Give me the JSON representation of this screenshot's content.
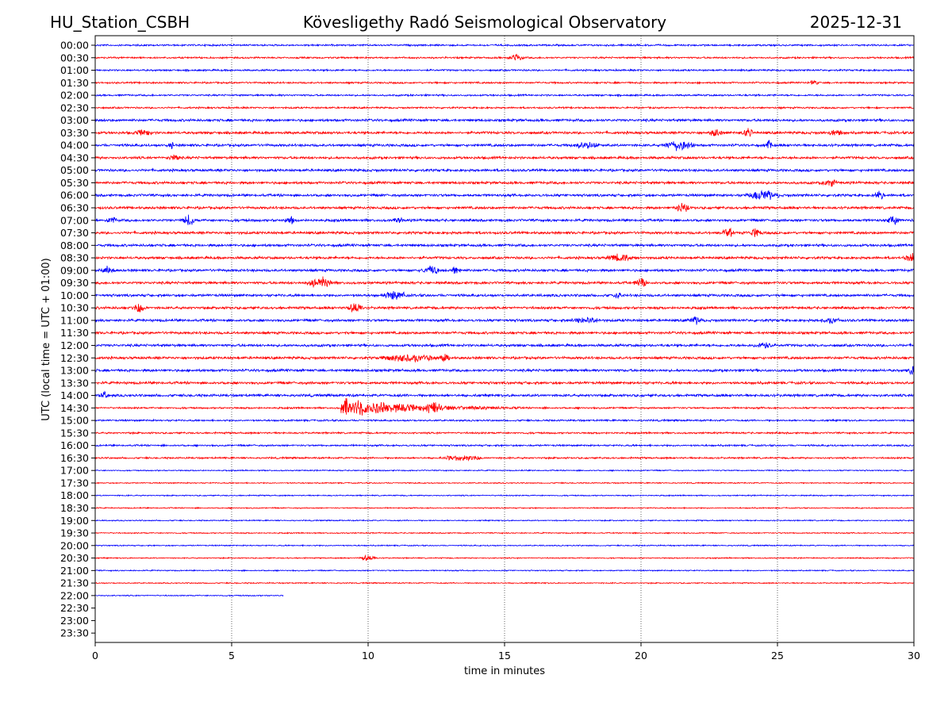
{
  "chart_data": {
    "type": "line",
    "title_left": "HU_Station_CSBH",
    "title_center": "Kövesligethy Radó Seismological Observatory",
    "title_right": "2025-12-31",
    "xlabel": "time in minutes",
    "ylabel": "UTC (local time = UTC + 01:00)",
    "xlim": [
      0,
      30
    ],
    "x_ticks": [
      "0",
      "5",
      "10",
      "15",
      "20",
      "25",
      "30"
    ],
    "grid": "vertical dotted at every 5 minutes",
    "row_labels": [
      "00:00",
      "00:30",
      "01:00",
      "01:30",
      "02:00",
      "02:30",
      "03:00",
      "03:30",
      "04:00",
      "04:30",
      "05:00",
      "05:30",
      "06:00",
      "06:30",
      "07:00",
      "07:30",
      "08:00",
      "08:30",
      "09:00",
      "09:30",
      "10:00",
      "10:30",
      "11:00",
      "11:30",
      "12:00",
      "12:30",
      "13:00",
      "13:30",
      "14:00",
      "14:30",
      "15:00",
      "15:30",
      "16:00",
      "16:30",
      "17:00",
      "17:30",
      "18:00",
      "18:30",
      "19:00",
      "19:30",
      "20:00",
      "20:30",
      "21:00",
      "21:30",
      "22:00",
      "22:30",
      "23:00",
      "23:30"
    ],
    "series_colors": {
      "hour": "#0000ff",
      "half_hour": "#ff0000"
    },
    "data_end": {
      "row": "22:00",
      "minute": 6.9
    },
    "events": [
      {
        "row": "00:30",
        "minute": 15.2,
        "amp": 4,
        "dur": 0.5
      },
      {
        "row": "01:30",
        "minute": 26.2,
        "amp": 3,
        "dur": 0.3
      },
      {
        "row": "03:30",
        "minute": 1.5,
        "amp": 3,
        "dur": 0.6
      },
      {
        "row": "03:30",
        "minute": 22.5,
        "amp": 4,
        "dur": 0.5
      },
      {
        "row": "03:30",
        "minute": 23.7,
        "amp": 5,
        "dur": 0.4
      },
      {
        "row": "03:30",
        "minute": 26.8,
        "amp": 3,
        "dur": 0.6
      },
      {
        "row": "04:00",
        "minute": 2.7,
        "amp": 4,
        "dur": 0.2
      },
      {
        "row": "04:00",
        "minute": 17.5,
        "amp": 3,
        "dur": 1.0
      },
      {
        "row": "04:00",
        "minute": 20.8,
        "amp": 5,
        "dur": 1.2
      },
      {
        "row": "04:00",
        "minute": 24.6,
        "amp": 5,
        "dur": 0.2
      },
      {
        "row": "04:30",
        "minute": 2.7,
        "amp": 3,
        "dur": 0.4
      },
      {
        "row": "05:30",
        "minute": 26.7,
        "amp": 4,
        "dur": 0.5
      },
      {
        "row": "06:00",
        "minute": 23.9,
        "amp": 5,
        "dur": 1.2
      },
      {
        "row": "06:00",
        "minute": 28.6,
        "amp": 5,
        "dur": 0.3
      },
      {
        "row": "06:30",
        "minute": 21.3,
        "amp": 5,
        "dur": 0.5
      },
      {
        "row": "07:00",
        "minute": 0.4,
        "amp": 4,
        "dur": 0.4
      },
      {
        "row": "07:00",
        "minute": 3.2,
        "amp": 6,
        "dur": 0.5
      },
      {
        "row": "07:00",
        "minute": 7.0,
        "amp": 5,
        "dur": 0.3
      },
      {
        "row": "07:00",
        "minute": 11.0,
        "amp": 5,
        "dur": 0.3
      },
      {
        "row": "07:00",
        "minute": 29.0,
        "amp": 4,
        "dur": 0.5
      },
      {
        "row": "07:30",
        "minute": 23.0,
        "amp": 5,
        "dur": 0.4
      },
      {
        "row": "07:30",
        "minute": 24.0,
        "amp": 5,
        "dur": 0.4
      },
      {
        "row": "08:30",
        "minute": 18.8,
        "amp": 4,
        "dur": 1.0
      },
      {
        "row": "08:30",
        "minute": 29.7,
        "amp": 5,
        "dur": 0.6
      },
      {
        "row": "09:00",
        "minute": 0.2,
        "amp": 4,
        "dur": 0.5
      },
      {
        "row": "09:00",
        "minute": 12.0,
        "amp": 5,
        "dur": 0.6
      },
      {
        "row": "09:00",
        "minute": 13.0,
        "amp": 4,
        "dur": 0.4
      },
      {
        "row": "09:30",
        "minute": 7.8,
        "amp": 6,
        "dur": 0.9
      },
      {
        "row": "09:30",
        "minute": 19.8,
        "amp": 6,
        "dur": 0.4
      },
      {
        "row": "10:00",
        "minute": 10.6,
        "amp": 5,
        "dur": 0.8
      },
      {
        "row": "10:00",
        "minute": 19.0,
        "amp": 4,
        "dur": 0.3
      },
      {
        "row": "10:30",
        "minute": 1.4,
        "amp": 5,
        "dur": 0.5
      },
      {
        "row": "10:30",
        "minute": 9.3,
        "amp": 6,
        "dur": 0.5
      },
      {
        "row": "11:00",
        "minute": 17.5,
        "amp": 3,
        "dur": 1.0
      },
      {
        "row": "11:00",
        "minute": 21.8,
        "amp": 4,
        "dur": 0.5
      },
      {
        "row": "11:00",
        "minute": 26.7,
        "amp": 3,
        "dur": 0.6
      },
      {
        "row": "12:00",
        "minute": 24.2,
        "amp": 4,
        "dur": 0.6
      },
      {
        "row": "12:30",
        "minute": 10.5,
        "amp": 4,
        "dur": 2.0
      },
      {
        "row": "12:30",
        "minute": 12.6,
        "amp": 4,
        "dur": 0.4
      },
      {
        "row": "13:00",
        "minute": 29.8,
        "amp": 5,
        "dur": 0.3
      },
      {
        "row": "14:00",
        "minute": 0.2,
        "amp": 4,
        "dur": 0.3
      },
      {
        "row": "14:30",
        "minute": 9.1,
        "amp": 14,
        "dur": 6.5
      },
      {
        "row": "16:30",
        "minute": 12.7,
        "amp": 3,
        "dur": 1.5
      },
      {
        "row": "20:30",
        "minute": 9.7,
        "amp": 3,
        "dur": 0.6
      }
    ]
  }
}
